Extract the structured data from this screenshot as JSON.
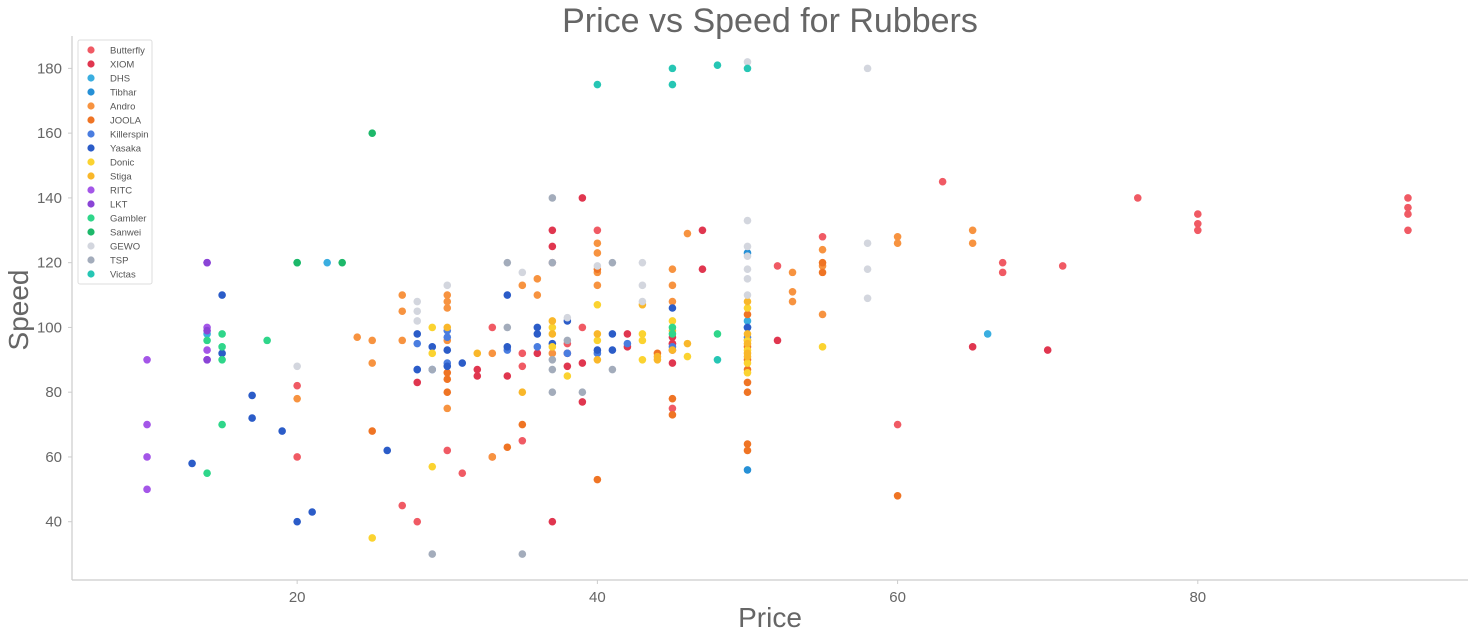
{
  "chart_data": {
    "type": "scatter",
    "title": "Price vs Speed for Rubbers",
    "xlabel": "Price",
    "ylabel": "Speed",
    "xlim": [
      5,
      98
    ],
    "ylim": [
      22,
      190
    ],
    "x_ticks": [
      20,
      40,
      60,
      80
    ],
    "y_ticks": [
      40,
      60,
      80,
      100,
      120,
      140,
      160,
      180
    ],
    "grid": false,
    "legend_position": "top-left",
    "series": [
      {
        "name": "Butterfly",
        "color": "#f05a64",
        "points": [
          [
            33,
            100
          ],
          [
            35,
            88
          ],
          [
            35,
            65
          ],
          [
            38,
            95
          ],
          [
            39,
            100
          ],
          [
            40,
            130
          ],
          [
            37,
            120
          ],
          [
            20,
            82
          ],
          [
            20,
            60
          ],
          [
            27,
            45
          ],
          [
            28,
            40
          ],
          [
            30,
            62
          ],
          [
            31,
            55
          ],
          [
            33,
            60
          ],
          [
            45,
            75
          ],
          [
            52,
            119
          ],
          [
            55,
            128
          ],
          [
            63,
            145
          ],
          [
            67,
            120
          ],
          [
            67,
            117
          ],
          [
            71,
            119
          ],
          [
            76,
            140
          ],
          [
            80,
            135
          ],
          [
            80,
            132
          ],
          [
            80,
            130
          ],
          [
            94,
            140
          ],
          [
            94,
            137
          ],
          [
            94,
            135
          ],
          [
            94,
            130
          ],
          [
            60,
            70
          ],
          [
            35,
            92
          ],
          [
            45,
            95
          ]
        ]
      },
      {
        "name": "XIOM",
        "color": "#e0364f",
        "points": [
          [
            37,
            130
          ],
          [
            37,
            125
          ],
          [
            39,
            140
          ],
          [
            47,
            130
          ],
          [
            47,
            118
          ],
          [
            42,
            98
          ],
          [
            42,
            94
          ],
          [
            38,
            92
          ],
          [
            38,
            88
          ],
          [
            36,
            92
          ],
          [
            32,
            87
          ],
          [
            32,
            85
          ],
          [
            28,
            83
          ],
          [
            39,
            89
          ],
          [
            39,
            77
          ],
          [
            37,
            40
          ],
          [
            45,
            97
          ],
          [
            45,
            95
          ],
          [
            45,
            93
          ],
          [
            45,
            89
          ],
          [
            52,
            96
          ],
          [
            65,
            94
          ],
          [
            70,
            93
          ],
          [
            34,
            85
          ]
        ]
      },
      {
        "name": "DHS",
        "color": "#3aaee0",
        "points": [
          [
            22,
            120
          ],
          [
            14,
            98
          ],
          [
            66,
            98
          ],
          [
            50,
            102
          ]
        ]
      },
      {
        "name": "Tibhar",
        "color": "#2690d6",
        "points": [
          [
            50,
            123
          ],
          [
            50,
            100
          ],
          [
            50,
            56
          ]
        ]
      },
      {
        "name": "Andro",
        "color": "#f79340",
        "points": [
          [
            24,
            97
          ],
          [
            25,
            96
          ],
          [
            27,
            110
          ],
          [
            27,
            105
          ],
          [
            27,
            96
          ],
          [
            30,
            110
          ],
          [
            30,
            108
          ],
          [
            30,
            106
          ],
          [
            30,
            96
          ],
          [
            30,
            75
          ],
          [
            33,
            92
          ],
          [
            35,
            113
          ],
          [
            36,
            115
          ],
          [
            36,
            110
          ],
          [
            37,
            92
          ],
          [
            40,
            126
          ],
          [
            40,
            123
          ],
          [
            40,
            117
          ],
          [
            40,
            113
          ],
          [
            45,
            118
          ],
          [
            45,
            113
          ],
          [
            45,
            108
          ],
          [
            46,
            129
          ],
          [
            53,
            117
          ],
          [
            53,
            111
          ],
          [
            53,
            108
          ],
          [
            55,
            124
          ],
          [
            55,
            119
          ],
          [
            55,
            104
          ],
          [
            60,
            128
          ],
          [
            60,
            126
          ],
          [
            65,
            130
          ],
          [
            65,
            126
          ],
          [
            25,
            89
          ],
          [
            20,
            78
          ],
          [
            33,
            60
          ]
        ]
      },
      {
        "name": "JOOLA",
        "color": "#ef7424",
        "points": [
          [
            25,
            68
          ],
          [
            30,
            84
          ],
          [
            30,
            80
          ],
          [
            34,
            63
          ],
          [
            35,
            70
          ],
          [
            40,
            53
          ],
          [
            45,
            78
          ],
          [
            45,
            73
          ],
          [
            50,
            96
          ],
          [
            50,
            94
          ],
          [
            50,
            90
          ],
          [
            50,
            87
          ],
          [
            50,
            83
          ],
          [
            50,
            80
          ],
          [
            50,
            64
          ],
          [
            50,
            62
          ],
          [
            50,
            104
          ],
          [
            55,
            120
          ],
          [
            55,
            117
          ],
          [
            60,
            48
          ],
          [
            30,
            86
          ],
          [
            44,
            92
          ],
          [
            40,
            118
          ]
        ]
      },
      {
        "name": "Killerspin",
        "color": "#4a7de0",
        "points": [
          [
            30,
            99
          ],
          [
            30,
            97
          ],
          [
            28,
            95
          ],
          [
            28,
            87
          ],
          [
            29,
            87
          ],
          [
            34,
            93
          ],
          [
            36,
            94
          ],
          [
            38,
            92
          ],
          [
            40,
            92
          ],
          [
            42,
            95
          ],
          [
            45,
            94
          ],
          [
            50,
            97
          ],
          [
            30,
            89
          ]
        ]
      },
      {
        "name": "Yasaka",
        "color": "#2b5cc8",
        "points": [
          [
            15,
            110
          ],
          [
            15,
            92
          ],
          [
            17,
            79
          ],
          [
            17,
            72
          ],
          [
            19,
            68
          ],
          [
            20,
            40
          ],
          [
            21,
            43
          ],
          [
            13,
            58
          ],
          [
            26,
            62
          ],
          [
            28,
            98
          ],
          [
            28,
            87
          ],
          [
            30,
            93
          ],
          [
            30,
            88
          ],
          [
            31,
            89
          ],
          [
            34,
            110
          ],
          [
            34,
            94
          ],
          [
            36,
            100
          ],
          [
            36,
            98
          ],
          [
            37,
            95
          ],
          [
            38,
            102
          ],
          [
            40,
            93
          ],
          [
            41,
            98
          ],
          [
            41,
            93
          ],
          [
            45,
            106
          ],
          [
            50,
            100
          ],
          [
            29,
            94
          ]
        ]
      },
      {
        "name": "Donic",
        "color": "#fbd330",
        "points": [
          [
            25,
            35
          ],
          [
            29,
            57
          ],
          [
            29,
            100
          ],
          [
            37,
            100
          ],
          [
            37,
            94
          ],
          [
            38,
            85
          ],
          [
            40,
            107
          ],
          [
            40,
            96
          ],
          [
            43,
            98
          ],
          [
            43,
            96
          ],
          [
            43,
            90
          ],
          [
            45,
            102
          ],
          [
            50,
            96
          ],
          [
            50,
            93
          ],
          [
            50,
            89
          ],
          [
            50,
            86
          ],
          [
            50,
            106
          ],
          [
            55,
            94
          ],
          [
            29,
            92
          ],
          [
            46,
            91
          ]
        ]
      },
      {
        "name": "Stiga",
        "color": "#f9b72a",
        "points": [
          [
            30,
            100
          ],
          [
            32,
            92
          ],
          [
            35,
            80
          ],
          [
            37,
            102
          ],
          [
            37,
            98
          ],
          [
            40,
            98
          ],
          [
            40,
            90
          ],
          [
            43,
            107
          ],
          [
            44,
            91
          ],
          [
            44,
            90
          ],
          [
            45,
            99
          ],
          [
            45,
            93
          ],
          [
            46,
            95
          ],
          [
            50,
            108
          ],
          [
            50,
            95
          ],
          [
            50,
            92
          ],
          [
            50,
            98
          ],
          [
            50,
            91
          ]
        ]
      },
      {
        "name": "RITC",
        "color": "#a456e8",
        "points": [
          [
            10,
            90
          ],
          [
            10,
            70
          ],
          [
            10,
            60
          ],
          [
            10,
            50
          ],
          [
            14,
            120
          ],
          [
            14,
            100
          ],
          [
            14,
            93
          ],
          [
            14,
            90
          ]
        ]
      },
      {
        "name": "LKT",
        "color": "#8a44d6",
        "points": [
          [
            14,
            120
          ],
          [
            14,
            99
          ],
          [
            14,
            90
          ]
        ]
      },
      {
        "name": "Gambler",
        "color": "#2fd68a",
        "points": [
          [
            15,
            98
          ],
          [
            15,
            94
          ],
          [
            15,
            90
          ],
          [
            15,
            70
          ],
          [
            14,
            96
          ],
          [
            14,
            55
          ],
          [
            18,
            96
          ],
          [
            20,
            120
          ],
          [
            45,
            100
          ],
          [
            45,
            98
          ],
          [
            48,
            98
          ]
        ]
      },
      {
        "name": "Sanwei",
        "color": "#1db86a",
        "points": [
          [
            20,
            120
          ],
          [
            23,
            120
          ],
          [
            25,
            160
          ]
        ]
      },
      {
        "name": "GEWO",
        "color": "#d3d6de",
        "points": [
          [
            30,
            113
          ],
          [
            28,
            108
          ],
          [
            28,
            105
          ],
          [
            20,
            88
          ],
          [
            35,
            117
          ],
          [
            37,
            120
          ],
          [
            40,
            119
          ],
          [
            43,
            113
          ],
          [
            43,
            108
          ],
          [
            43,
            120
          ],
          [
            50,
            182
          ],
          [
            50,
            133
          ],
          [
            50,
            125
          ],
          [
            50,
            122
          ],
          [
            50,
            118
          ],
          [
            50,
            115
          ],
          [
            50,
            110
          ],
          [
            58,
            180
          ],
          [
            58,
            126
          ],
          [
            58,
            118
          ],
          [
            58,
            109
          ],
          [
            38,
            103
          ],
          [
            28,
            102
          ]
        ]
      },
      {
        "name": "TSP",
        "color": "#a3acbb",
        "points": [
          [
            29,
            30
          ],
          [
            29,
            87
          ],
          [
            35,
            30
          ],
          [
            37,
            140
          ],
          [
            37,
            120
          ],
          [
            37,
            87
          ],
          [
            34,
            120
          ],
          [
            34,
            100
          ],
          [
            37,
            90
          ],
          [
            37,
            80
          ],
          [
            39,
            80
          ],
          [
            41,
            120
          ],
          [
            41,
            87
          ],
          [
            38,
            96
          ]
        ]
      },
      {
        "name": "Victas",
        "color": "#26c6b4",
        "points": [
          [
            40,
            175
          ],
          [
            45,
            180
          ],
          [
            45,
            175
          ],
          [
            48,
            181
          ],
          [
            50,
            180
          ],
          [
            48,
            90
          ]
        ]
      }
    ]
  }
}
